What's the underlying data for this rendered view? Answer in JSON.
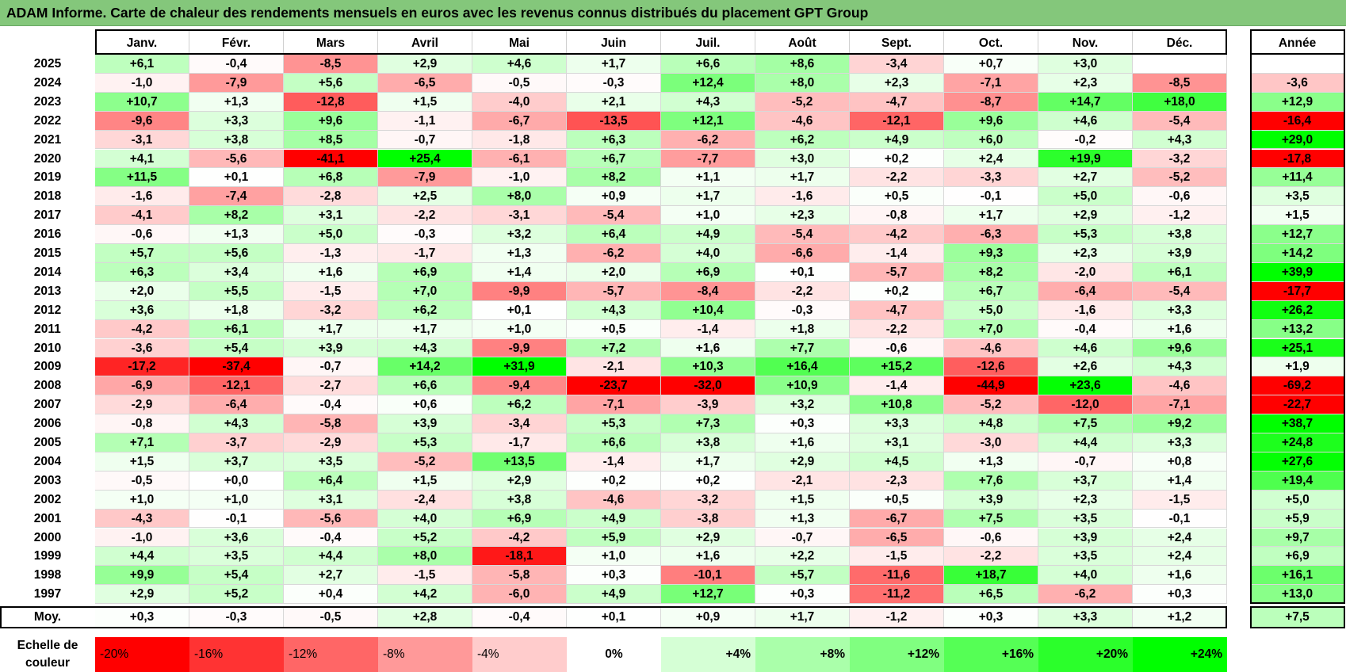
{
  "title": "ADAM Informe. Carte de chaleur des rendements mensuels en euros avec les revenus connus distribués du placement GPT Group",
  "colors": {
    "title_bg": "#84c77b",
    "neg_max": "#ff0000",
    "neutral": "#ffffff",
    "pos_max": "#00ff00"
  },
  "chart_data": {
    "type": "heatmap",
    "months": [
      "Janv.",
      "Févr.",
      "Mars",
      "Avril",
      "Mai",
      "Juin",
      "Juil.",
      "Août",
      "Sept.",
      "Oct.",
      "Nov.",
      "Déc."
    ],
    "year_column_label": "Année",
    "rows": [
      {
        "year": "2025",
        "values": [
          "+6,1",
          "-0,4",
          "-8,5",
          "+2,9",
          "+4,6",
          "+1,7",
          "+6,6",
          "+8,6",
          "-3,4",
          "+0,7",
          "+3,0",
          ""
        ],
        "annual": ""
      },
      {
        "year": "2024",
        "values": [
          "-1,0",
          "-7,9",
          "+5,6",
          "-6,5",
          "-0,5",
          "-0,3",
          "+12,4",
          "+8,0",
          "+2,3",
          "-7,1",
          "+2,3",
          "-8,5"
        ],
        "annual": "-3,6"
      },
      {
        "year": "2023",
        "values": [
          "+10,7",
          "+1,3",
          "-12,8",
          "+1,5",
          "-4,0",
          "+2,1",
          "+4,3",
          "-5,2",
          "-4,7",
          "-8,7",
          "+14,7",
          "+18,0"
        ],
        "annual": "+12,9"
      },
      {
        "year": "2022",
        "values": [
          "-9,6",
          "+3,3",
          "+9,6",
          "-1,1",
          "-6,7",
          "-13,5",
          "+12,1",
          "-4,6",
          "-12,1",
          "+9,6",
          "+4,6",
          "-5,4"
        ],
        "annual": "-16,4"
      },
      {
        "year": "2021",
        "values": [
          "-3,1",
          "+3,8",
          "+8,5",
          "-0,7",
          "-1,8",
          "+6,3",
          "-6,2",
          "+6,2",
          "+4,9",
          "+6,0",
          "-0,2",
          "+4,3"
        ],
        "annual": "+29,0"
      },
      {
        "year": "2020",
        "values": [
          "+4,1",
          "-5,6",
          "-41,1",
          "+25,4",
          "-6,1",
          "+6,7",
          "-7,7",
          "+3,0",
          "+0,2",
          "+2,4",
          "+19,9",
          "-3,2"
        ],
        "annual": "-17,8"
      },
      {
        "year": "2019",
        "values": [
          "+11,5",
          "+0,1",
          "+6,8",
          "-7,9",
          "-1,0",
          "+8,2",
          "+1,1",
          "+1,7",
          "-2,2",
          "-3,3",
          "+2,7",
          "-5,2"
        ],
        "annual": "+11,4"
      },
      {
        "year": "2018",
        "values": [
          "-1,6",
          "-7,4",
          "-2,8",
          "+2,5",
          "+8,0",
          "+0,9",
          "+1,7",
          "-1,6",
          "+0,5",
          "-0,1",
          "+5,0",
          "-0,6"
        ],
        "annual": "+3,5"
      },
      {
        "year": "2017",
        "values": [
          "-4,1",
          "+8,2",
          "+3,1",
          "-2,2",
          "-3,1",
          "-5,4",
          "+1,0",
          "+2,3",
          "-0,8",
          "+1,7",
          "+2,9",
          "-1,2"
        ],
        "annual": "+1,5"
      },
      {
        "year": "2016",
        "values": [
          "-0,6",
          "+1,3",
          "+5,0",
          "-0,3",
          "+3,2",
          "+6,4",
          "+4,9",
          "-5,4",
          "-4,2",
          "-6,3",
          "+5,3",
          "+3,8"
        ],
        "annual": "+12,7"
      },
      {
        "year": "2015",
        "values": [
          "+5,7",
          "+5,6",
          "-1,3",
          "-1,7",
          "+1,3",
          "-6,2",
          "+4,0",
          "-6,6",
          "-1,4",
          "+9,3",
          "+2,3",
          "+3,9"
        ],
        "annual": "+14,2"
      },
      {
        "year": "2014",
        "values": [
          "+6,3",
          "+3,4",
          "+1,6",
          "+6,9",
          "+1,4",
          "+2,0",
          "+6,9",
          "+0,1",
          "-5,7",
          "+8,2",
          "-2,0",
          "+6,1"
        ],
        "annual": "+39,9"
      },
      {
        "year": "2013",
        "values": [
          "+2,0",
          "+5,5",
          "-1,5",
          "+7,0",
          "-9,9",
          "-5,7",
          "-8,4",
          "-2,2",
          "+0,2",
          "+6,7",
          "-6,4",
          "-5,4"
        ],
        "annual": "-17,7"
      },
      {
        "year": "2012",
        "values": [
          "+3,6",
          "+1,8",
          "-3,2",
          "+6,2",
          "+0,1",
          "+4,3",
          "+10,4",
          "-0,3",
          "-4,7",
          "+5,0",
          "-1,6",
          "+3,3"
        ],
        "annual": "+26,2"
      },
      {
        "year": "2011",
        "values": [
          "-4,2",
          "+6,1",
          "+1,7",
          "+1,7",
          "+1,0",
          "+0,5",
          "-1,4",
          "+1,8",
          "-2,2",
          "+7,0",
          "-0,4",
          "+1,6"
        ],
        "annual": "+13,2"
      },
      {
        "year": "2010",
        "values": [
          "-3,6",
          "+5,4",
          "+3,9",
          "+4,3",
          "-9,9",
          "+7,2",
          "+1,6",
          "+7,7",
          "-0,6",
          "-4,6",
          "+4,6",
          "+9,6"
        ],
        "annual": "+25,1"
      },
      {
        "year": "2009",
        "values": [
          "-17,2",
          "-37,4",
          "-0,7",
          "+14,2",
          "+31,9",
          "-2,1",
          "+10,3",
          "+16,4",
          "+15,2",
          "-12,6",
          "+2,6",
          "+4,3"
        ],
        "annual": "+1,9"
      },
      {
        "year": "2008",
        "values": [
          "-6,9",
          "-12,1",
          "-2,7",
          "+6,6",
          "-9,4",
          "-23,7",
          "-32,0",
          "+10,9",
          "-1,4",
          "-44,9",
          "+23,6",
          "-4,6"
        ],
        "annual": "-69,2"
      },
      {
        "year": "2007",
        "values": [
          "-2,9",
          "-6,4",
          "-0,4",
          "+0,6",
          "+6,2",
          "-7,1",
          "-3,9",
          "+3,2",
          "+10,8",
          "-5,2",
          "-12,0",
          "-7,1"
        ],
        "annual": "-22,7"
      },
      {
        "year": "2006",
        "values": [
          "-0,8",
          "+4,3",
          "-5,8",
          "+3,9",
          "-3,4",
          "+5,3",
          "+7,3",
          "+0,3",
          "+3,3",
          "+4,8",
          "+7,5",
          "+9,2"
        ],
        "annual": "+38,7"
      },
      {
        "year": "2005",
        "values": [
          "+7,1",
          "-3,7",
          "-2,9",
          "+5,3",
          "-1,7",
          "+6,6",
          "+3,8",
          "+1,6",
          "+3,1",
          "-3,0",
          "+4,4",
          "+3,3"
        ],
        "annual": "+24,8"
      },
      {
        "year": "2004",
        "values": [
          "+1,5",
          "+3,7",
          "+3,5",
          "-5,2",
          "+13,5",
          "-1,4",
          "+1,7",
          "+2,9",
          "+4,5",
          "+1,3",
          "-0,7",
          "+0,8"
        ],
        "annual": "+27,6"
      },
      {
        "year": "2003",
        "values": [
          "-0,5",
          "+0,0",
          "+6,4",
          "+1,5",
          "+2,9",
          "+0,2",
          "+0,2",
          "-2,1",
          "-2,3",
          "+7,6",
          "+3,7",
          "+1,4"
        ],
        "annual": "+19,4"
      },
      {
        "year": "2002",
        "values": [
          "+1,0",
          "+1,0",
          "+3,1",
          "-2,4",
          "+3,8",
          "-4,6",
          "-3,2",
          "+1,5",
          "+0,5",
          "+3,9",
          "+2,3",
          "-1,5"
        ],
        "annual": "+5,0"
      },
      {
        "year": "2001",
        "values": [
          "-4,3",
          "-0,1",
          "-5,6",
          "+4,0",
          "+6,9",
          "+4,9",
          "-3,8",
          "+1,3",
          "-6,7",
          "+7,5",
          "+3,5",
          "-0,1"
        ],
        "annual": "+5,9"
      },
      {
        "year": "2000",
        "values": [
          "-1,0",
          "+3,6",
          "-0,4",
          "+5,2",
          "-4,2",
          "+5,9",
          "+2,9",
          "-0,7",
          "-6,5",
          "-0,6",
          "+3,9",
          "+2,4"
        ],
        "annual": "+9,7"
      },
      {
        "year": "1999",
        "values": [
          "+4,4",
          "+3,5",
          "+4,4",
          "+8,0",
          "-18,1",
          "+1,0",
          "+1,6",
          "+2,2",
          "-1,5",
          "-2,2",
          "+3,5",
          "+2,4"
        ],
        "annual": "+6,9"
      },
      {
        "year": "1998",
        "values": [
          "+9,9",
          "+5,4",
          "+2,7",
          "-1,5",
          "-5,8",
          "+0,3",
          "-10,1",
          "+5,7",
          "-11,6",
          "+18,7",
          "+4,0",
          "+1,6"
        ],
        "annual": "+16,1"
      },
      {
        "year": "1997",
        "values": [
          "+2,9",
          "+5,2",
          "+0,4",
          "+4,2",
          "-6,0",
          "+4,9",
          "+12,7",
          "+0,3",
          "-11,2",
          "+6,5",
          "-6,2",
          "+0,3"
        ],
        "annual": "+13,0"
      }
    ],
    "average": {
      "label": "Moy.",
      "values": [
        "+0,3",
        "-0,3",
        "-0,5",
        "+2,8",
        "-0,4",
        "+0,1",
        "+0,9",
        "+1,7",
        "-1,2",
        "+0,3",
        "+3,3",
        "+1,2"
      ],
      "annual": "+7,5"
    },
    "scale": {
      "label_line1": "Echelle de",
      "label_line2": "couleur",
      "steps": [
        {
          "label": "-20%",
          "value": -20
        },
        {
          "label": "-16%",
          "value": -16
        },
        {
          "label": "-12%",
          "value": -12
        },
        {
          "label": "-8%",
          "value": -8
        },
        {
          "label": "-4%",
          "value": -4
        },
        {
          "label": "0%",
          "value": 0
        },
        {
          "label": "+4%",
          "value": 4
        },
        {
          "label": "+8%",
          "value": 8
        },
        {
          "label": "+12%",
          "value": 12
        },
        {
          "label": "+16%",
          "value": 16
        },
        {
          "label": "+20%",
          "value": 20
        },
        {
          "label": "+24%",
          "value": 24
        }
      ]
    }
  }
}
